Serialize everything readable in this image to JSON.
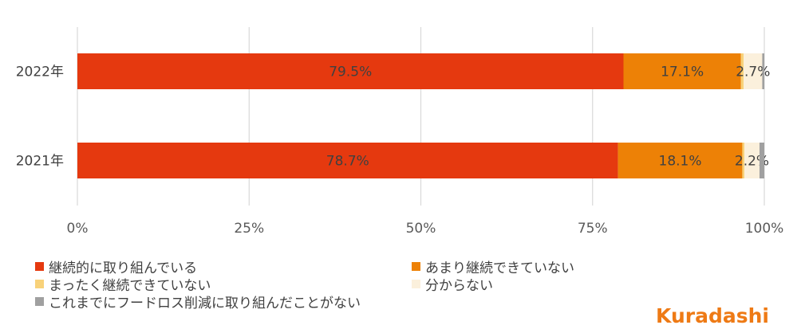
{
  "chart_data": {
    "type": "bar",
    "orientation": "horizontal",
    "stacked": true,
    "percent_stacked": true,
    "categories": [
      "2022年",
      "2021年"
    ],
    "series": [
      {
        "name": "継続的に取り組んでいる",
        "color": "#e5390f",
        "values": [
          79.5,
          78.7
        ],
        "labels": [
          "79.5%",
          "78.7%"
        ]
      },
      {
        "name": "あまり継続できていない",
        "color": "#ed8106",
        "values": [
          17.1,
          18.1
        ],
        "labels": [
          "17.1%",
          "18.1%"
        ]
      },
      {
        "name": "まったく継続できていない",
        "color": "#f8d27a",
        "values": [
          0.4,
          0.3
        ],
        "labels": [
          "",
          ""
        ]
      },
      {
        "name": "分からない",
        "color": "#fbf0dc",
        "values": [
          2.7,
          2.2
        ],
        "labels": [
          "2.7%",
          "2.2%"
        ]
      },
      {
        "name": "これまでにフードロス削減に取り組んだことがない",
        "color": "#a0a0a0",
        "values": [
          0.3,
          0.7
        ],
        "labels": [
          "",
          ""
        ]
      }
    ],
    "xlim": [
      0,
      100
    ],
    "x_ticks": [
      "0%",
      "25%",
      "50%",
      "75%",
      "100%"
    ],
    "grid": true,
    "legend_position": "bottom",
    "title": "",
    "xlabel": "",
    "ylabel": ""
  },
  "brand": {
    "logo_text": "Kuradashi",
    "logo_color": "#ee7a15"
  }
}
